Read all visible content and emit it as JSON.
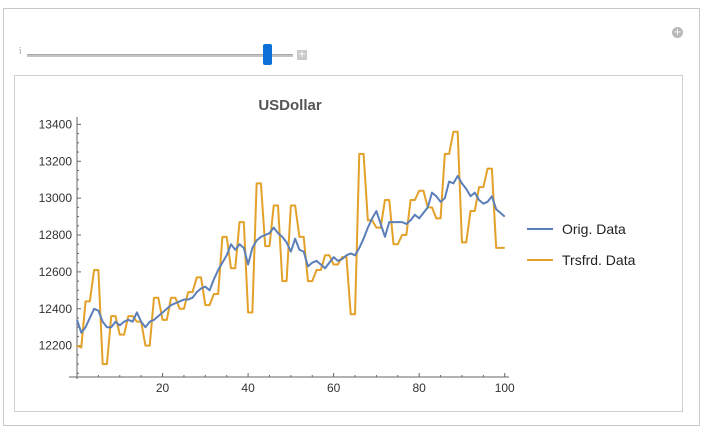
{
  "manipulate": {
    "slider_label": "i",
    "slider_plus": "+",
    "corner_plus": "+",
    "slider_fraction": 0.93
  },
  "colors": {
    "orig": "#5b7fb8",
    "trsfrd": "#e3a12a",
    "thumb": "#0a6fd6"
  },
  "chart_data": {
    "type": "line",
    "title": "USDollar",
    "xlabel": "",
    "ylabel": "",
    "xlim": [
      0,
      101
    ],
    "ylim": [
      12030,
      13440
    ],
    "xticks": [
      20,
      40,
      60,
      80,
      100
    ],
    "yticks": [
      12200,
      12400,
      12600,
      12800,
      13000,
      13200,
      13400
    ],
    "grid": false,
    "legend_position": "right",
    "series": [
      {
        "name": "Orig. Data",
        "values": [
          12340,
          12270,
          12300,
          12350,
          12400,
          12390,
          12330,
          12300,
          12300,
          12330,
          12310,
          12330,
          12340,
          12330,
          12380,
          12330,
          12300,
          12330,
          12340,
          12360,
          12380,
          12400,
          12420,
          12430,
          12440,
          12450,
          12450,
          12460,
          12490,
          12510,
          12520,
          12500,
          12560,
          12610,
          12650,
          12690,
          12750,
          12720,
          12750,
          12730,
          12640,
          12730,
          12770,
          12790,
          12800,
          12810,
          12840,
          12810,
          12790,
          12760,
          12710,
          12780,
          12720,
          12710,
          12630,
          12650,
          12660,
          12640,
          12620,
          12650,
          12680,
          12660,
          12670,
          12690,
          12700,
          12690,
          12730,
          12780,
          12840,
          12890,
          12930,
          12860,
          12790,
          12870,
          12870,
          12870,
          12870,
          12860,
          12880,
          12910,
          12890,
          12920,
          12950,
          13030,
          13010,
          12980,
          13000,
          13090,
          13080,
          13120,
          13080,
          13050,
          13010,
          13030,
          12990,
          12970,
          12980,
          13010,
          12940,
          12920,
          12900
        ]
      },
      {
        "name": "Trsfrd. Data",
        "values": [
          12200,
          12190,
          12440,
          12440,
          12610,
          12610,
          12100,
          12100,
          12360,
          12360,
          12260,
          12260,
          12360,
          12360,
          12330,
          12330,
          12200,
          12200,
          12460,
          12460,
          12340,
          12340,
          12460,
          12460,
          12400,
          12400,
          12490,
          12490,
          12570,
          12570,
          12420,
          12420,
          12480,
          12480,
          12790,
          12790,
          12620,
          12620,
          12870,
          12870,
          12380,
          12380,
          13080,
          13080,
          12740,
          12740,
          12960,
          12960,
          12550,
          12550,
          12960,
          12960,
          12790,
          12790,
          12550,
          12550,
          12610,
          12610,
          12690,
          12690,
          12640,
          12640,
          12680,
          12680,
          12370,
          12370,
          13240,
          13240,
          12880,
          12880,
          12840,
          12840,
          12990,
          12990,
          12750,
          12750,
          12800,
          12800,
          12990,
          12990,
          13040,
          13040,
          12950,
          12950,
          12890,
          12890,
          13240,
          13240,
          13360,
          13360,
          12760,
          12760,
          12930,
          12930,
          13060,
          13060,
          13160,
          13160,
          12730,
          12730,
          12730
        ]
      }
    ]
  }
}
